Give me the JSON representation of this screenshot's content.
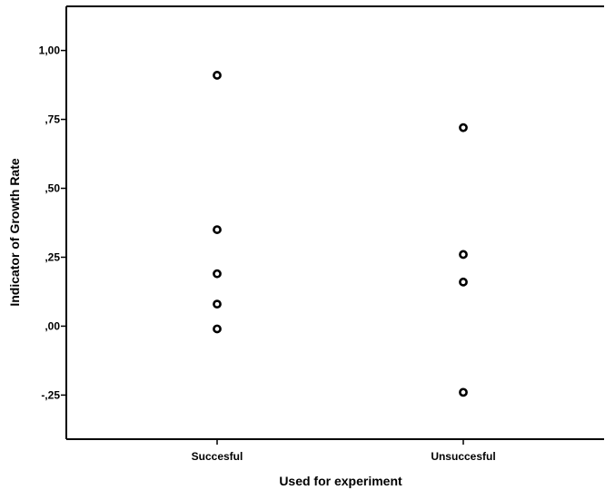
{
  "chart_data": {
    "type": "scatter",
    "title": "",
    "xlabel": "Used  for  experiment",
    "ylabel": "Indicator of Growth Rate",
    "categories": [
      "Succesful",
      "Unsuccesful"
    ],
    "y_ticks": [
      {
        "value": 1.0,
        "label": "1,00"
      },
      {
        "value": 0.75,
        "label": ",75"
      },
      {
        "value": 0.5,
        "label": ",50"
      },
      {
        "value": 0.25,
        "label": ",25"
      },
      {
        "value": 0.0,
        "label": ",00"
      },
      {
        "value": -0.25,
        "label": "-,25"
      }
    ],
    "ylim": [
      -0.41,
      1.16
    ],
    "points": [
      {
        "category": "Succesful",
        "y": 0.91
      },
      {
        "category": "Succesful",
        "y": 0.35
      },
      {
        "category": "Succesful",
        "y": 0.19
      },
      {
        "category": "Succesful",
        "y": 0.08
      },
      {
        "category": "Succesful",
        "y": -0.01
      },
      {
        "category": "Unsuccesful",
        "y": 0.72
      },
      {
        "category": "Unsuccesful",
        "y": 0.26
      },
      {
        "category": "Unsuccesful",
        "y": 0.16
      },
      {
        "category": "Unsuccesful",
        "y": -0.24
      }
    ],
    "grid": false,
    "marker": "hollow-circle"
  }
}
